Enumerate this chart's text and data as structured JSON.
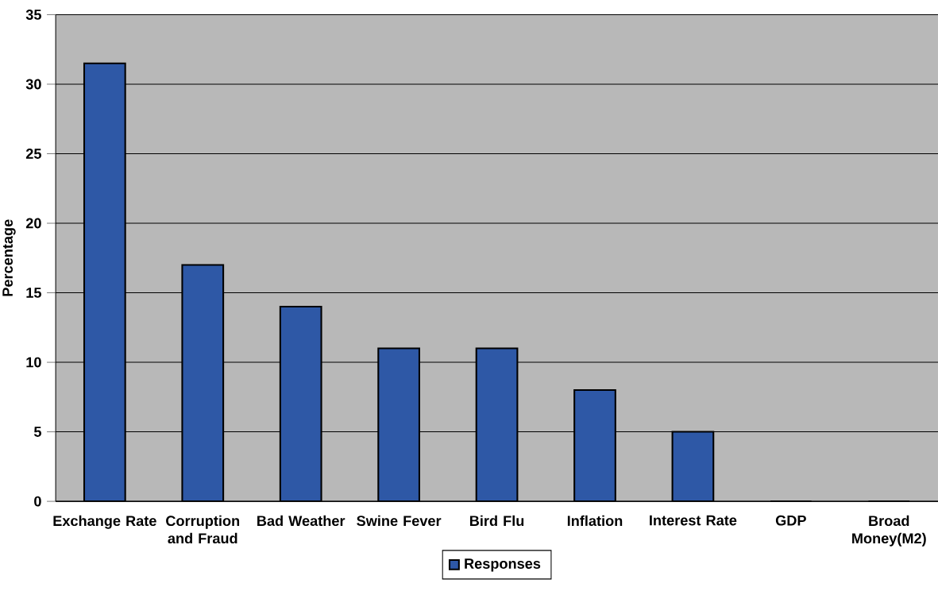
{
  "chart_data": {
    "type": "bar",
    "ylabel": "Percentage",
    "categories": [
      "Exchange Rate",
      "Corruption and Fraud",
      "Bad Weather",
      "Swine Fever",
      "Bird Flu",
      "Inflation",
      "Interest Rate",
      "GDP",
      "Broad Money(M2)"
    ],
    "series": [
      {
        "name": "Responses",
        "color": "#2e58a6",
        "values": [
          31.5,
          17,
          14,
          11,
          11,
          8,
          5,
          0,
          0
        ]
      }
    ],
    "ylim": [
      0,
      35
    ],
    "yticks": [
      0,
      5,
      10,
      15,
      20,
      25,
      30,
      35
    ],
    "grid": "y",
    "legend": "bottom"
  }
}
